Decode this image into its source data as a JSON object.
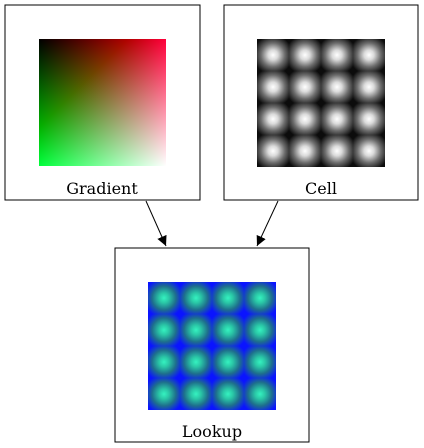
{
  "nodes": {
    "gradient": {
      "label": "Gradient"
    },
    "cell": {
      "label": "Cell"
    },
    "lookup": {
      "label": "Lookup"
    }
  },
  "edges": [
    {
      "from": "gradient",
      "to": "lookup"
    },
    {
      "from": "cell",
      "to": "lookup"
    }
  ],
  "colors": {
    "gradient_top_left": "#000000",
    "gradient_top_right": "#ff0000",
    "gradient_bottom_left": "#00ff00",
    "gradient_bottom_right": "#0000ff",
    "cell_center": "#ffffff",
    "cell_edge": "#000000",
    "lookup_center": "#28e6b4",
    "lookup_edge": "#0a14ff"
  }
}
